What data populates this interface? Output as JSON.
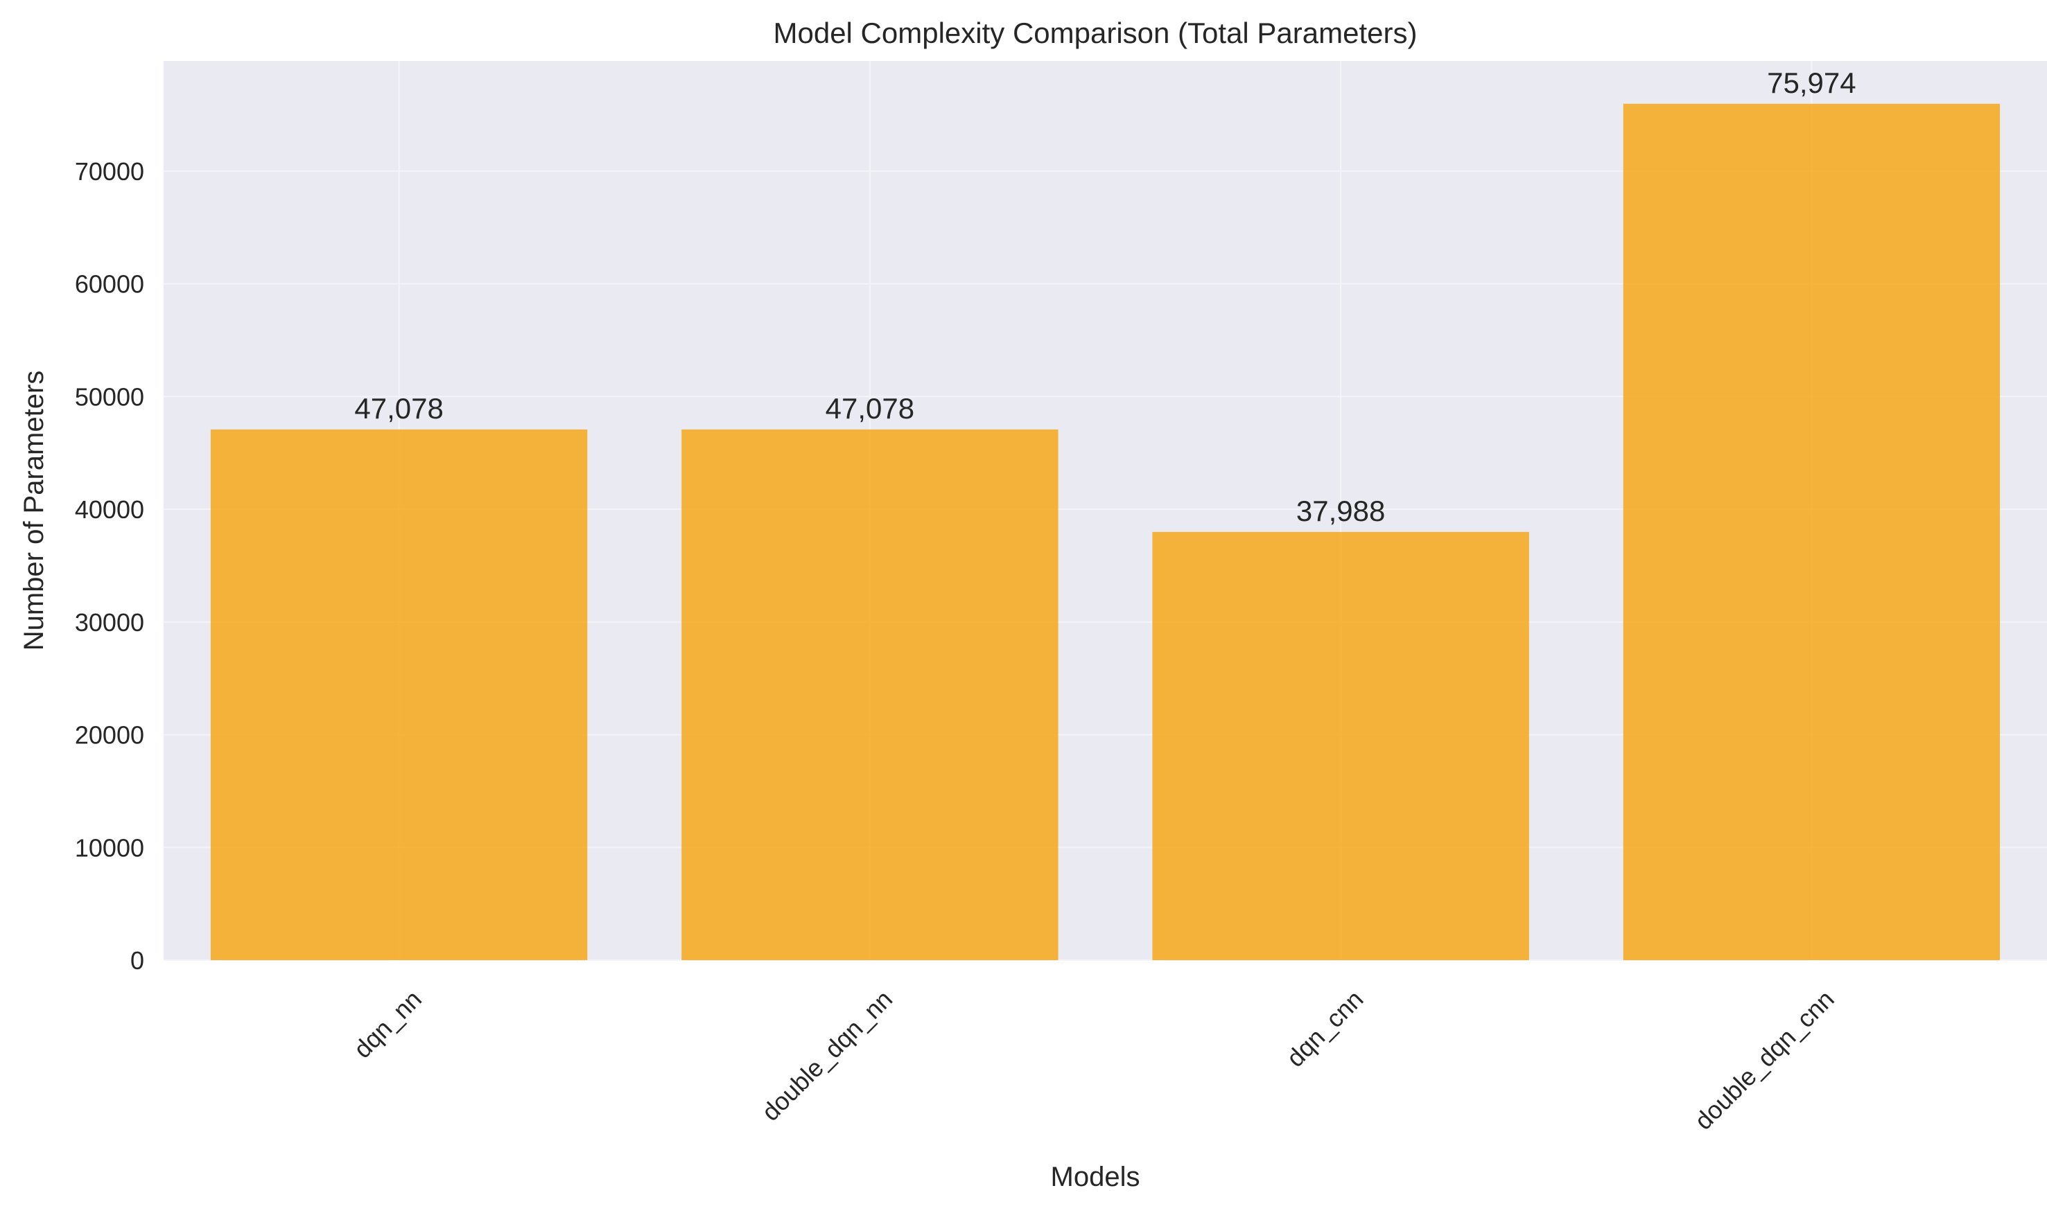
{
  "chart_data": {
    "type": "bar",
    "title": "Model Complexity Comparison (Total Parameters)",
    "xlabel": "Models",
    "ylabel": "Number of Parameters",
    "categories": [
      "dqn_nn",
      "double_dqn_nn",
      "dqn_cnn",
      "double_dqn_cnn"
    ],
    "values": [
      47078,
      47078,
      37988,
      75974
    ],
    "value_labels": [
      "47,078",
      "47,078",
      "37,988",
      "75,974"
    ],
    "yticks": [
      0,
      10000,
      20000,
      30000,
      40000,
      50000,
      60000,
      70000
    ],
    "ytick_labels": [
      "0",
      "10000",
      "20000",
      "30000",
      "40000",
      "50000",
      "60000",
      "70000"
    ],
    "ylim": [
      0,
      79772
    ],
    "grid": true,
    "bar_color": "#F7A81B",
    "plot_background": "#EAEAF2",
    "grid_color": "#F4F4F8"
  }
}
